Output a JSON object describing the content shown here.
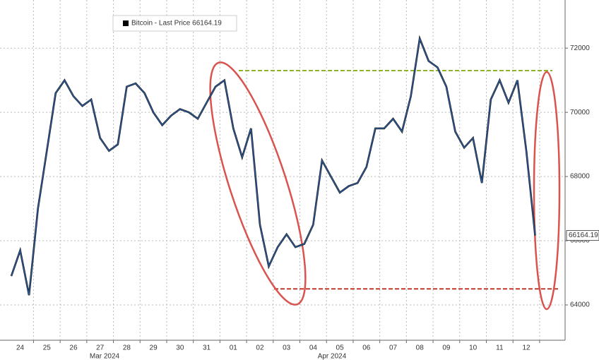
{
  "chart_data": {
    "type": "line",
    "categories": [
      null,
      "24",
      null,
      null,
      "25",
      null,
      null,
      "26",
      null,
      null,
      "27",
      null,
      null,
      "28",
      null,
      null,
      "29",
      null,
      null,
      "30",
      null,
      null,
      "31",
      null,
      null,
      "01",
      null,
      null,
      "02",
      null,
      null,
      "03",
      null,
      null,
      "04",
      null,
      null,
      "05",
      null,
      null,
      "06",
      null,
      null,
      "07",
      null,
      null,
      "08",
      null,
      null,
      "09",
      null,
      null,
      "10",
      null,
      null,
      "11",
      null,
      null,
      "12",
      null
    ],
    "month_labels": [
      "Mar 2024",
      "Apr 2024"
    ],
    "series": [
      {
        "name": "Bitcoin - Last Price 66164.19",
        "color": "#2f5d9e",
        "values": [
          64900,
          65700,
          64300,
          67000,
          68800,
          70600,
          71000,
          70500,
          70200,
          70400,
          69200,
          68800,
          69000,
          70800,
          70900,
          70600,
          70000,
          69600,
          69900,
          70100,
          70000,
          69800,
          70300,
          70800,
          71000,
          69500,
          68600,
          69500,
          66500,
          65200,
          65800,
          66200,
          65800,
          65900,
          66500,
          68500,
          68000,
          67500,
          67700,
          67800,
          68300,
          69500,
          69500,
          69800,
          69400,
          70500,
          72300,
          71600,
          71400,
          70800,
          69400,
          68900,
          69200,
          67800,
          70400,
          71000,
          70300,
          71000,
          68800,
          66164.19
        ]
      }
    ],
    "last_value": 66164.19,
    "reference_lines": [
      {
        "value": 71300,
        "color": "#8db32a"
      },
      {
        "value": 64500,
        "color": "#c0392b"
      }
    ],
    "ylim": [
      62900,
      73500
    ],
    "yticks": [
      64000,
      66000,
      68000,
      70000,
      72000
    ],
    "grid": true
  }
}
